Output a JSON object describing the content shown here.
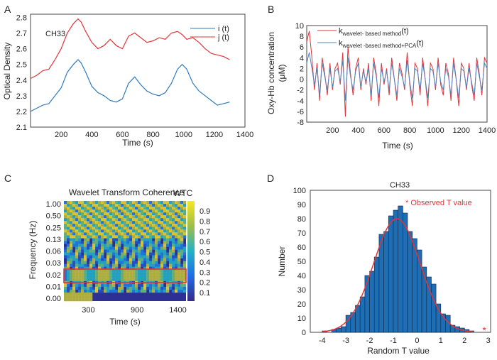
{
  "chart_data": [
    {
      "panel": "A",
      "type": "line",
      "annotation": "CH33",
      "xlabel": "Time (s)",
      "ylabel": "Optical Density",
      "xticks": [
        200,
        400,
        600,
        800,
        1000,
        1200,
        1400
      ],
      "yticks": [
        2.1,
        2.2,
        2.3,
        2.4,
        2.5,
        2.6,
        2.7,
        2.8
      ],
      "xlim": [
        0,
        1400
      ],
      "ylim": [
        2.1,
        2.82
      ],
      "legend": "top-right",
      "series": [
        {
          "name": "i (t)",
          "color": "#2f7ab8",
          "x": [
            0,
            40,
            80,
            120,
            160,
            200,
            240,
            280,
            310,
            330,
            360,
            400,
            440,
            480,
            520,
            560,
            600,
            640,
            680,
            720,
            760,
            800,
            840,
            880,
            920,
            960,
            990,
            1020,
            1060,
            1100,
            1140,
            1180,
            1220,
            1260,
            1300
          ],
          "values": [
            2.2,
            2.22,
            2.24,
            2.25,
            2.3,
            2.35,
            2.45,
            2.5,
            2.53,
            2.51,
            2.45,
            2.36,
            2.32,
            2.3,
            2.27,
            2.26,
            2.28,
            2.38,
            2.42,
            2.37,
            2.33,
            2.31,
            2.3,
            2.32,
            2.38,
            2.47,
            2.5,
            2.47,
            2.38,
            2.33,
            2.3,
            2.27,
            2.24,
            2.25,
            2.26
          ]
        },
        {
          "name": "j (t)",
          "color": "#e0353a",
          "x": [
            0,
            40,
            80,
            120,
            160,
            200,
            240,
            280,
            310,
            330,
            360,
            400,
            440,
            480,
            520,
            560,
            600,
            640,
            680,
            720,
            760,
            800,
            840,
            880,
            920,
            960,
            990,
            1020,
            1060,
            1100,
            1140,
            1180,
            1220,
            1260,
            1300
          ],
          "values": [
            2.41,
            2.43,
            2.46,
            2.47,
            2.53,
            2.6,
            2.7,
            2.76,
            2.79,
            2.77,
            2.71,
            2.64,
            2.6,
            2.62,
            2.66,
            2.62,
            2.6,
            2.68,
            2.7,
            2.67,
            2.64,
            2.65,
            2.67,
            2.66,
            2.7,
            2.71,
            2.69,
            2.66,
            2.67,
            2.64,
            2.6,
            2.57,
            2.56,
            2.55,
            2.53
          ]
        }
      ]
    },
    {
      "panel": "B",
      "type": "line",
      "xlabel": "Time (s)",
      "ylabel": "Oxy-Hb concentration",
      "ylabel_unit": "(μM)",
      "xticks": [
        200,
        400,
        600,
        800,
        1000,
        1200,
        1400
      ],
      "yticks": [
        -8,
        -6,
        -4,
        -2,
        0,
        2,
        4,
        6,
        8,
        10
      ],
      "xlim": [
        0,
        1400
      ],
      "ylim": [
        -8,
        10
      ],
      "legend": "top-right",
      "series": [
        {
          "name": "k",
          "subscript": "wavelet- based method",
          "suffix": "(t)",
          "color": "#e0353a",
          "x": [
            0,
            20,
            40,
            60,
            80,
            100,
            120,
            140,
            160,
            180,
            200,
            220,
            240,
            260,
            280,
            300,
            320,
            340,
            360,
            380,
            400,
            420,
            440,
            460,
            480,
            500,
            520,
            540,
            560,
            580,
            600,
            620,
            640,
            660,
            680,
            700,
            720,
            740,
            760,
            780,
            800,
            820,
            840,
            860,
            880,
            900,
            920,
            940,
            960,
            980,
            1000,
            1020,
            1040,
            1060,
            1080,
            1100,
            1120,
            1140,
            1160,
            1180,
            1200,
            1220,
            1240,
            1260,
            1280,
            1300,
            1320,
            1340,
            1360,
            1380,
            1400
          ],
          "values": [
            7,
            9,
            4,
            -2,
            3,
            -4,
            4,
            1,
            -3,
            3,
            -2,
            2,
            3,
            -1,
            5,
            -7,
            6,
            1,
            -3,
            2,
            4,
            -2,
            2,
            -1,
            3,
            -4,
            4,
            1,
            -5,
            3,
            -1,
            2,
            -3,
            4,
            0,
            -4,
            3,
            1,
            -2,
            5,
            -1,
            -5,
            3,
            2,
            -3,
            4,
            0,
            -5,
            3,
            2,
            -2,
            4,
            -1,
            -3,
            3,
            1,
            -4,
            4,
            0,
            -5,
            3,
            2,
            -2,
            3,
            -1,
            -4,
            4,
            1,
            -3,
            4,
            3
          ]
        },
        {
          "name": "k",
          "subscript": "wavelet -based method+PCA",
          "suffix": "(t)",
          "color": "#4f86c2",
          "x": [
            0,
            20,
            40,
            60,
            80,
            100,
            120,
            140,
            160,
            180,
            200,
            220,
            240,
            260,
            280,
            300,
            320,
            340,
            360,
            380,
            400,
            420,
            440,
            460,
            480,
            500,
            520,
            540,
            560,
            580,
            600,
            620,
            640,
            660,
            680,
            700,
            720,
            740,
            760,
            780,
            800,
            820,
            840,
            860,
            880,
            900,
            920,
            940,
            960,
            980,
            1000,
            1020,
            1040,
            1060,
            1080,
            1100,
            1120,
            1140,
            1160,
            1180,
            1200,
            1220,
            1240,
            1260,
            1280,
            1300,
            1320,
            1340,
            1360,
            1380,
            1400
          ],
          "values": [
            3,
            5,
            2,
            -1,
            2,
            -3,
            3,
            0.5,
            -2,
            2,
            -1.5,
            1.5,
            2,
            -0.5,
            3.5,
            -4,
            4,
            0.5,
            -2,
            1.5,
            3,
            -1.5,
            1.5,
            -0.5,
            2,
            -3,
            3,
            0.5,
            -3.5,
            2,
            -0.5,
            1.5,
            -2,
            3,
            0,
            -3,
            2,
            0.5,
            -1.5,
            3.5,
            -0.5,
            -3.5,
            2,
            1.5,
            -2,
            3,
            0,
            -3.5,
            2,
            1.5,
            -1.5,
            3,
            -0.5,
            -2,
            2,
            0.5,
            -3,
            3,
            0,
            -3.5,
            2,
            1.5,
            -1.5,
            2,
            -0.5,
            -3,
            3,
            0.5,
            -2,
            3,
            2
          ]
        }
      ]
    },
    {
      "panel": "C",
      "type": "heatmap",
      "title": "Wavelet Transform Coherence",
      "xlabel": "Time (s)",
      "ylabel": "Frequency (Hz)",
      "xticks": [
        300,
        900,
        1400
      ],
      "xlim": [
        0,
        1500
      ],
      "ytick_labels": [
        "1.00",
        "0.50",
        "0.25",
        "0.13",
        "0.06",
        "0.03",
        "0.02",
        "0.01",
        "0.00"
      ],
      "colorbar_label": "WTC",
      "colorbar_ticks": [
        0.9,
        0.8,
        0.7,
        0.6,
        0.5,
        0.4,
        0.3,
        0.2,
        0.1
      ],
      "highlight_band": "0.02 Hz"
    },
    {
      "panel": "D",
      "type": "bar",
      "title": "CH33",
      "xlabel": "Random T value",
      "ylabel": "Number",
      "xticks": [
        -4,
        -3,
        -2,
        -1,
        0,
        1,
        2,
        3
      ],
      "yticks": [
        0,
        10,
        20,
        30,
        40,
        50,
        60,
        70,
        80,
        90,
        100
      ],
      "xlim": [
        -4.5,
        3.1
      ],
      "ylim": [
        0,
        100
      ],
      "bin_width": 0.2,
      "bin_centers": [
        -3.9,
        -3.7,
        -3.5,
        -3.3,
        -3.1,
        -2.9,
        -2.7,
        -2.5,
        -2.3,
        -2.1,
        -1.9,
        -1.7,
        -1.5,
        -1.3,
        -1.1,
        -0.9,
        -0.7,
        -0.5,
        -0.3,
        -0.1,
        0.1,
        0.3,
        0.5,
        0.7,
        0.9,
        1.1,
        1.3,
        1.5,
        1.7,
        1.9,
        2.1,
        2.3
      ],
      "values": [
        1,
        0,
        2,
        3,
        4,
        12,
        14,
        19,
        25,
        40,
        43,
        53,
        69,
        71,
        82,
        86,
        89,
        84,
        71,
        66,
        58,
        46,
        39,
        34,
        20,
        13,
        12,
        5,
        4,
        3,
        2,
        1
      ],
      "fit_curve": {
        "type": "normal",
        "mean": -0.85,
        "sd": 0.98,
        "peak": 80,
        "color": "#e0353a"
      },
      "observed_t": 2.87,
      "observed_label": "* Observed T value",
      "bar_color": "#1f6db3",
      "legend": "top-right"
    }
  ]
}
